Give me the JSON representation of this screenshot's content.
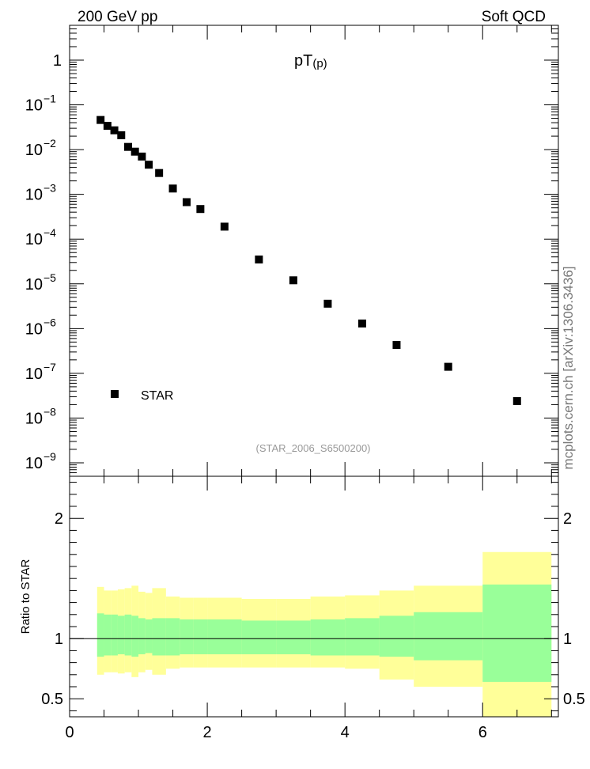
{
  "header": {
    "left": "200 GeV pp",
    "right": "Soft QCD"
  },
  "side_label": "mcplots.cern.ch [arXiv:1306.3436]",
  "chart_data": [
    {
      "type": "scatter",
      "title_main": "pT",
      "title_sub": "(p)",
      "watermark": "(STAR_2006_S6500200)",
      "y_scale": "log",
      "xlim": [
        0,
        7.1
      ],
      "ylim": [
        5e-10,
        6
      ],
      "y_ticks": [
        {
          "v": 1,
          "label": "1"
        },
        {
          "v": 0.1,
          "base": "10",
          "exp": "−1"
        },
        {
          "v": 0.01,
          "base": "10",
          "exp": "−2"
        },
        {
          "v": 0.001,
          "base": "10",
          "exp": "−3"
        },
        {
          "v": 0.0001,
          "base": "10",
          "exp": "−4"
        },
        {
          "v": 1e-05,
          "base": "10",
          "exp": "−5"
        },
        {
          "v": 1e-06,
          "base": "10",
          "exp": "−6"
        },
        {
          "v": 1e-07,
          "base": "10",
          "exp": "−7"
        },
        {
          "v": 1e-08,
          "base": "10",
          "exp": "−8"
        },
        {
          "v": 1e-09,
          "base": "10",
          "exp": "−9"
        }
      ],
      "legend": {
        "label": "STAR",
        "position": "bottom-left"
      },
      "series": [
        {
          "name": "STAR",
          "x": [
            0.45,
            0.55,
            0.65,
            0.75,
            0.85,
            0.95,
            1.05,
            1.15,
            1.3,
            1.5,
            1.7,
            1.9,
            2.25,
            2.75,
            3.25,
            3.75,
            4.25,
            4.75,
            5.5,
            6.5
          ],
          "y": [
            0.046,
            0.034,
            0.027,
            0.021,
            0.0115,
            0.009,
            0.007,
            0.0046,
            0.003,
            0.00135,
            0.00067,
            0.00047,
            0.00019,
            3.5e-05,
            1.2e-05,
            3.6e-06,
            1.3e-06,
            4.3e-07,
            1.4e-07,
            2.4e-08
          ]
        }
      ]
    },
    {
      "type": "area",
      "ylabel": "Ratio to STAR",
      "xlim": [
        0,
        7.1
      ],
      "ylim": [
        0.35,
        2.35
      ],
      "x_ticks": [
        0,
        2,
        4,
        6
      ],
      "y_ticks": [
        0.5,
        1,
        2
      ],
      "bands": {
        "edges": [
          0.4,
          0.5,
          0.6,
          0.7,
          0.8,
          0.9,
          1.0,
          1.1,
          1.2,
          1.4,
          1.6,
          1.8,
          2.0,
          2.5,
          3.0,
          3.5,
          4.0,
          4.5,
          5.0,
          6.0,
          7.0
        ],
        "green_low": [
          0.85,
          0.86,
          0.86,
          0.87,
          0.86,
          0.85,
          0.87,
          0.88,
          0.86,
          0.86,
          0.87,
          0.87,
          0.87,
          0.87,
          0.87,
          0.86,
          0.86,
          0.85,
          0.82,
          0.64
        ],
        "green_high": [
          1.21,
          1.2,
          1.2,
          1.19,
          1.2,
          1.19,
          1.17,
          1.16,
          1.17,
          1.17,
          1.16,
          1.16,
          1.16,
          1.15,
          1.15,
          1.16,
          1.17,
          1.19,
          1.22,
          1.45
        ],
        "yellow_low": [
          0.7,
          0.72,
          0.72,
          0.71,
          0.72,
          0.68,
          0.72,
          0.74,
          0.7,
          0.75,
          0.76,
          0.76,
          0.76,
          0.76,
          0.76,
          0.76,
          0.75,
          0.66,
          0.6,
          0.35
        ],
        "yellow_high": [
          1.43,
          1.4,
          1.4,
          1.41,
          1.42,
          1.44,
          1.39,
          1.38,
          1.42,
          1.35,
          1.34,
          1.34,
          1.34,
          1.33,
          1.33,
          1.35,
          1.36,
          1.4,
          1.44,
          1.72
        ],
        "green_color": "#99ff99",
        "yellow_color": "#ffff99"
      }
    }
  ]
}
